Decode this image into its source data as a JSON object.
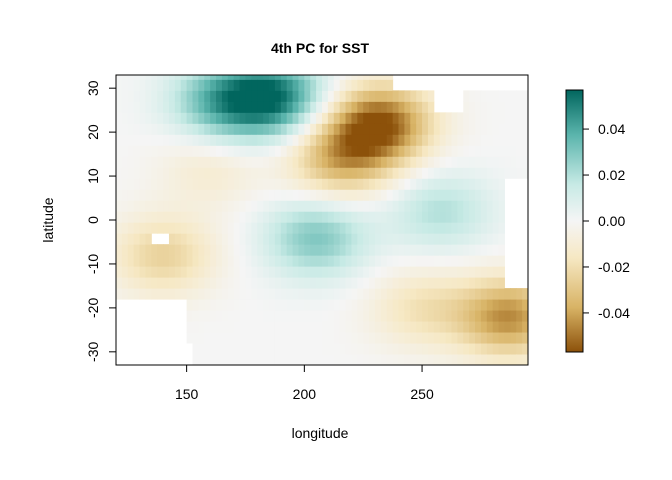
{
  "chart_data": {
    "type": "heatmap",
    "title": "4th PC for SST",
    "xlabel": "longitude",
    "ylabel": "latitude",
    "xlim": [
      120,
      295
    ],
    "ylim": [
      -33,
      33
    ],
    "x_ticks": [
      "150",
      "200",
      "250"
    ],
    "y_ticks": [
      "30",
      "20",
      "10",
      "0",
      "-10",
      "-20",
      "-30"
    ],
    "colorbar": {
      "min": -0.057,
      "max": 0.057,
      "ticks": [
        "0.04",
        "0.02",
        "0.00",
        "-0.02",
        "-0.04"
      ],
      "colors": [
        "#8c510a",
        "#d8b365",
        "#f6e8c3",
        "#f5f5f5",
        "#c7eae5",
        "#5ab4ac",
        "#01665e"
      ]
    },
    "features": [
      {
        "lon": 187,
        "lat": 28,
        "value": 0.05
      },
      {
        "lon": 165,
        "lat": 27,
        "value": 0.035
      },
      {
        "lon": 205,
        "lat": -4,
        "value": 0.03
      },
      {
        "lon": 232,
        "lat": 22,
        "value": -0.055
      },
      {
        "lon": 215,
        "lat": 14,
        "value": -0.035
      },
      {
        "lon": 258,
        "lat": 2,
        "value": 0.02
      },
      {
        "lon": 287,
        "lat": -22,
        "value": -0.045
      },
      {
        "lon": 140,
        "lat": -8,
        "value": -0.025
      },
      {
        "lon": 160,
        "lat": 12,
        "value": -0.012
      },
      {
        "lon": 250,
        "lat": -20,
        "value": -0.018
      }
    ]
  }
}
